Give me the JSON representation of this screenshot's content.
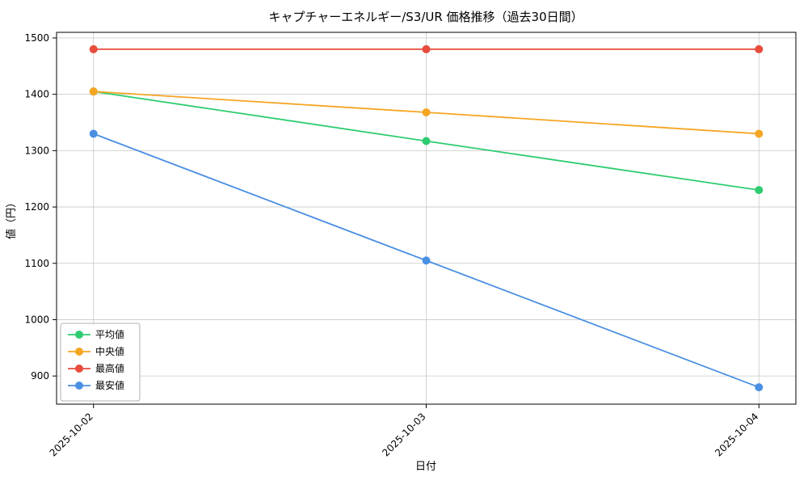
{
  "chart_data": {
    "type": "line",
    "title": "キャプチャーエネルギー/S3/UR 価格推移（過去30日間）",
    "xlabel": "日付",
    "ylabel": "値（円）",
    "categories": [
      "2025-10-02",
      "2025-10-03",
      "2025-10-04"
    ],
    "series": [
      {
        "name": "平均値",
        "key": "series-mean",
        "color": "#2ecc71",
        "values": [
          1405,
          1317,
          1230
        ]
      },
      {
        "name": "中央値",
        "key": "series-median",
        "color": "#f5a623",
        "values": [
          1405,
          1368,
          1330
        ]
      },
      {
        "name": "最高値",
        "key": "series-max",
        "color": "#e74c3c",
        "values": [
          1480,
          1480,
          1480
        ]
      },
      {
        "name": "最安値",
        "key": "series-min",
        "color": "#4a90e2",
        "values": [
          1330,
          1105,
          880
        ]
      }
    ],
    "ylim": [
      850,
      1510
    ],
    "yticks": [
      900,
      1000,
      1100,
      1200,
      1300,
      1400,
      1500
    ],
    "grid": true,
    "grid_color": "#c8c8c8",
    "spine_color": "#000000",
    "legend_position": "lower left"
  }
}
